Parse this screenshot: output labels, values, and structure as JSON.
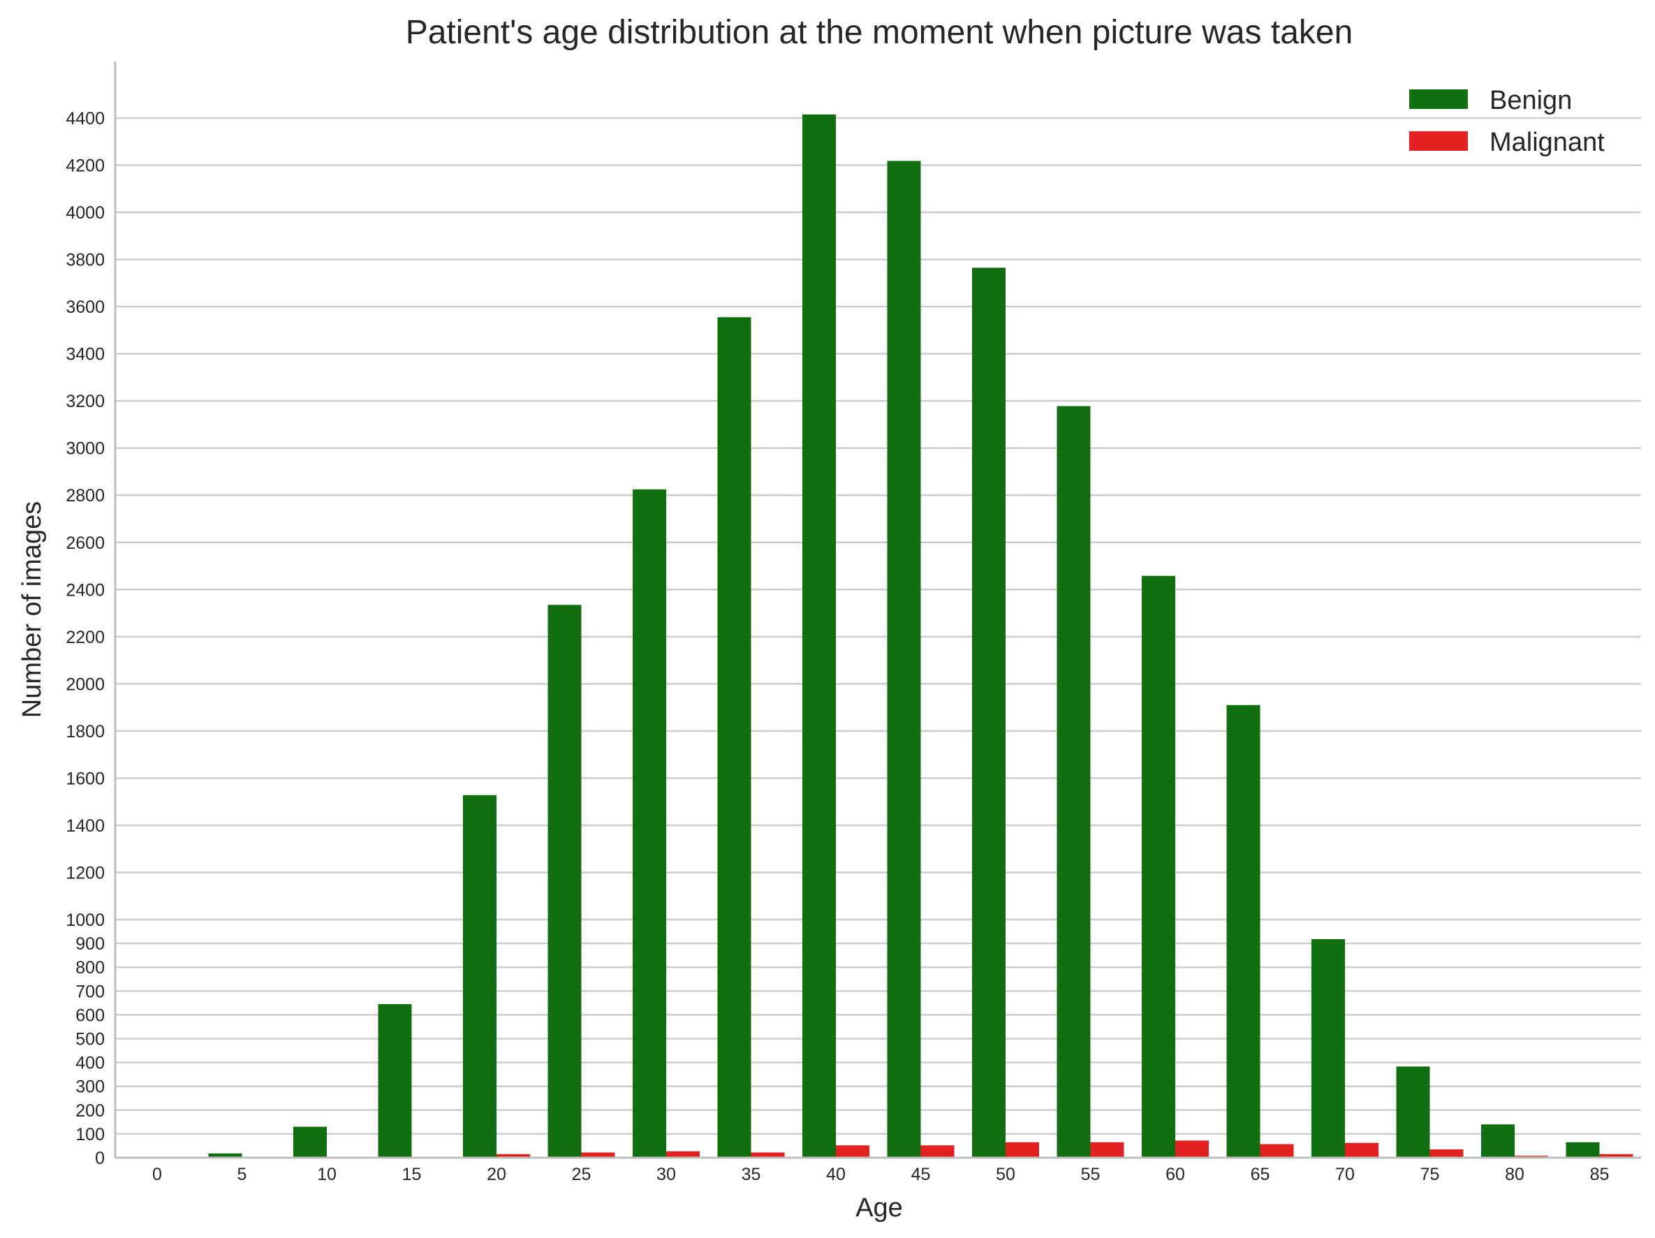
{
  "chart_data": {
    "type": "bar",
    "title": "Patient's age distribution at the moment when picture was taken",
    "xlabel": "Age",
    "ylabel": "Number of images",
    "categories": [
      "0",
      "5",
      "10",
      "15",
      "20",
      "25",
      "30",
      "35",
      "40",
      "45",
      "50",
      "55",
      "60",
      "65",
      "70",
      "75",
      "80",
      "85"
    ],
    "series": [
      {
        "name": "Benign",
        "color": "#107010",
        "values": [
          0,
          18,
          130,
          645,
          1528,
          2335,
          2825,
          3555,
          4415,
          4218,
          3765,
          3178,
          2458,
          1910,
          918,
          383,
          140,
          65
        ]
      },
      {
        "name": "Malignant",
        "color": "#e42020",
        "values": [
          0,
          0,
          0,
          0,
          15,
          22,
          27,
          22,
          52,
          52,
          65,
          65,
          72,
          57,
          62,
          35,
          8,
          15
        ]
      }
    ],
    "yticks": [
      0,
      100,
      200,
      300,
      400,
      500,
      600,
      700,
      800,
      900,
      1000,
      1200,
      1400,
      1600,
      1800,
      2000,
      2200,
      2400,
      2600,
      2800,
      3000,
      3200,
      3400,
      3600,
      3800,
      4000,
      4200,
      4400
    ],
    "ylim": [
      0,
      4640
    ],
    "y_scale": "piecewise: 0-1000 compressed, 1000-4400 linear",
    "grid": "horizontal",
    "legend_position": "top-right"
  }
}
